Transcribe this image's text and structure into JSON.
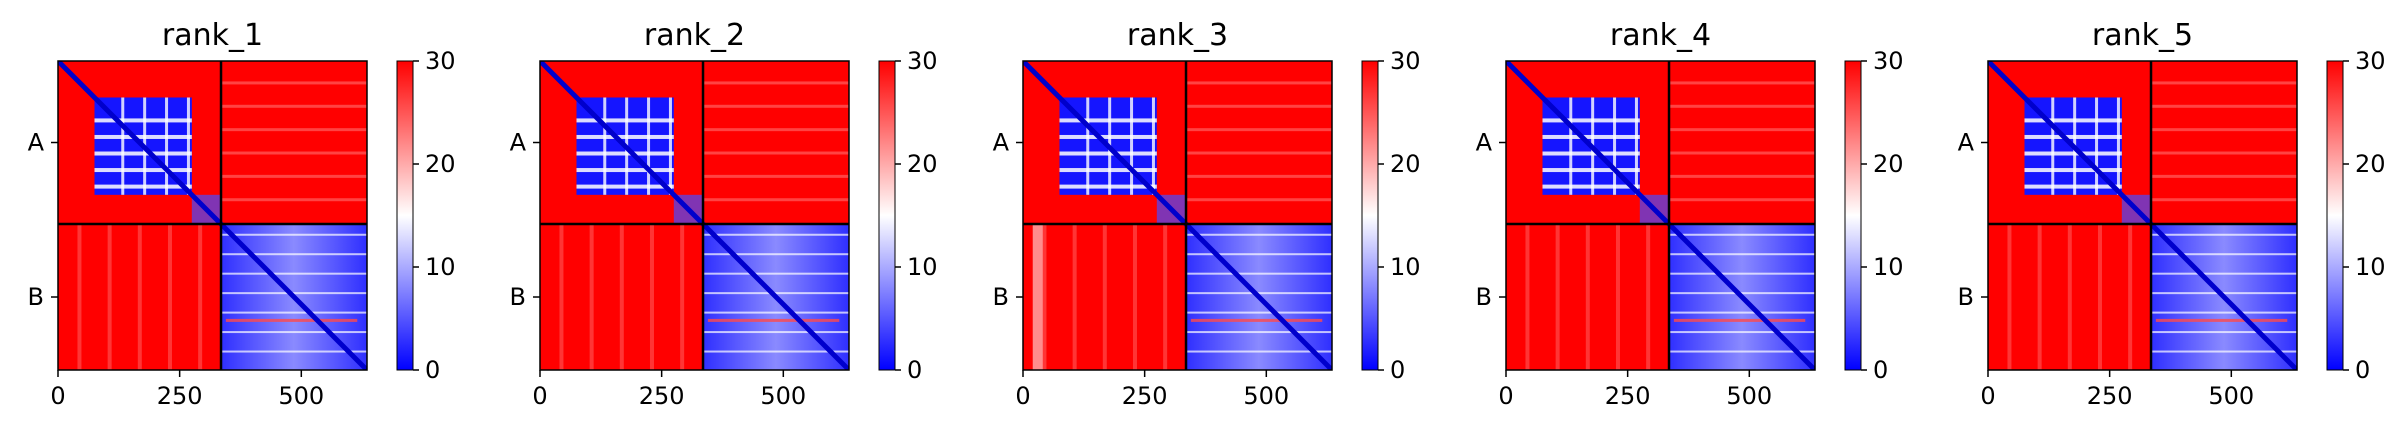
{
  "chart_data": [
    {
      "type": "heatmap",
      "title": "rank_1",
      "xlabel": "",
      "ylabel": "",
      "x_ticks": [
        0,
        250,
        500
      ],
      "y_categories": [
        "A",
        "B"
      ],
      "chain_lengths": [
        335,
        300
      ],
      "xlim": [
        0,
        635
      ],
      "colorbar": {
        "min": 0,
        "max": 30,
        "ticks": [
          0,
          10,
          20,
          30
        ],
        "colors": [
          "#0000ff",
          "#ffffff",
          "#ff0000"
        ]
      },
      "blocks": [
        {
          "rows": "A",
          "cols": "A",
          "level": "mostly-high with low-value domain grid and low diagonal"
        },
        {
          "rows": "A",
          "cols": "B",
          "level": "high"
        },
        {
          "rows": "B",
          "cols": "A",
          "level": "high"
        },
        {
          "rows": "B",
          "cols": "B",
          "level": "low with low diagonal"
        }
      ]
    },
    {
      "type": "heatmap",
      "title": "rank_2",
      "xlabel": "",
      "ylabel": "",
      "x_ticks": [
        0,
        250,
        500
      ],
      "y_categories": [
        "A",
        "B"
      ],
      "chain_lengths": [
        335,
        300
      ],
      "xlim": [
        0,
        635
      ],
      "colorbar": {
        "min": 0,
        "max": 30,
        "ticks": [
          0,
          10,
          20,
          30
        ],
        "colors": [
          "#0000ff",
          "#ffffff",
          "#ff0000"
        ]
      },
      "blocks": [
        {
          "rows": "A",
          "cols": "A",
          "level": "mostly-high with low-value domain grid and low diagonal"
        },
        {
          "rows": "A",
          "cols": "B",
          "level": "high"
        },
        {
          "rows": "B",
          "cols": "A",
          "level": "high"
        },
        {
          "rows": "B",
          "cols": "B",
          "level": "low with low diagonal"
        }
      ]
    },
    {
      "type": "heatmap",
      "title": "rank_3",
      "xlabel": "",
      "ylabel": "",
      "x_ticks": [
        0,
        250,
        500
      ],
      "y_categories": [
        "A",
        "B"
      ],
      "chain_lengths": [
        335,
        300
      ],
      "xlim": [
        0,
        635
      ],
      "colorbar": {
        "min": 0,
        "max": 30,
        "ticks": [
          0,
          10,
          20,
          30
        ],
        "colors": [
          "#0000ff",
          "#ffffff",
          "#ff0000"
        ]
      },
      "blocks": [
        {
          "rows": "A",
          "cols": "A",
          "level": "mostly-high with low-value domain grid and low diagonal"
        },
        {
          "rows": "A",
          "cols": "B",
          "level": "high"
        },
        {
          "rows": "B",
          "cols": "A",
          "level": "high"
        },
        {
          "rows": "B",
          "cols": "B",
          "level": "low with low diagonal"
        }
      ]
    },
    {
      "type": "heatmap",
      "title": "rank_4",
      "xlabel": "",
      "ylabel": "",
      "x_ticks": [
        0,
        250,
        500
      ],
      "y_categories": [
        "A",
        "B"
      ],
      "chain_lengths": [
        335,
        300
      ],
      "xlim": [
        0,
        635
      ],
      "colorbar": {
        "min": 0,
        "max": 30,
        "ticks": [
          0,
          10,
          20,
          30
        ],
        "colors": [
          "#0000ff",
          "#ffffff",
          "#ff0000"
        ]
      },
      "blocks": [
        {
          "rows": "A",
          "cols": "A",
          "level": "mostly-high with low-value domain grid and low diagonal"
        },
        {
          "rows": "A",
          "cols": "B",
          "level": "high"
        },
        {
          "rows": "B",
          "cols": "A",
          "level": "high"
        },
        {
          "rows": "B",
          "cols": "B",
          "level": "low with low diagonal"
        }
      ]
    },
    {
      "type": "heatmap",
      "title": "rank_5",
      "xlabel": "",
      "ylabel": "",
      "x_ticks": [
        0,
        250,
        500
      ],
      "y_categories": [
        "A",
        "B"
      ],
      "chain_lengths": [
        335,
        300
      ],
      "xlim": [
        0,
        635
      ],
      "colorbar": {
        "min": 0,
        "max": 30,
        "ticks": [
          0,
          10,
          20,
          30
        ],
        "colors": [
          "#0000ff",
          "#ffffff",
          "#ff0000"
        ]
      },
      "blocks": [
        {
          "rows": "A",
          "cols": "A",
          "level": "mostly-high with low-value domain grid and low diagonal"
        },
        {
          "rows": "A",
          "cols": "B",
          "level": "high"
        },
        {
          "rows": "B",
          "cols": "A",
          "level": "high"
        },
        {
          "rows": "B",
          "cols": "B",
          "level": "low with low diagonal"
        }
      ]
    }
  ]
}
